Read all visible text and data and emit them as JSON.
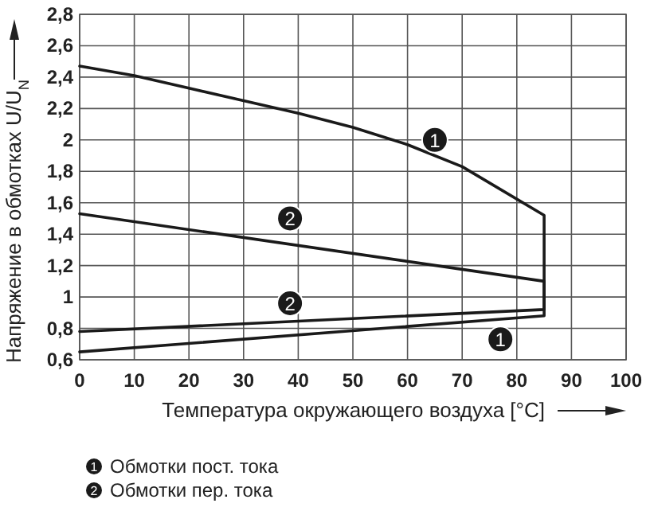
{
  "chart_data": {
    "type": "line",
    "xlabel": "Температура окружающего воздуха [°C]",
    "ylabel": "Напряжение в обмотках  U/U$_{N}$",
    "xlim": [
      0,
      100
    ],
    "xticks": [
      0,
      10,
      20,
      30,
      40,
      50,
      60,
      70,
      80,
      90,
      100
    ],
    "ylim": [
      0.6,
      2.8
    ],
    "yticks": [
      {
        "value": 0.6,
        "label": "0,6"
      },
      {
        "value": 0.8,
        "label": "0,8"
      },
      {
        "value": 1,
        "label": "1"
      },
      {
        "value": 1.2,
        "label": "1,2"
      },
      {
        "value": 1.4,
        "label": "1,4"
      },
      {
        "value": 1.6,
        "label": "1,6"
      },
      {
        "value": 1.8,
        "label": "1,8"
      },
      {
        "value": 2,
        "label": "2"
      },
      {
        "value": 2.2,
        "label": "2,2"
      },
      {
        "value": 2.4,
        "label": "2,4"
      },
      {
        "value": 2.6,
        "label": "2,6"
      },
      {
        "value": 2.8,
        "label": "2,8"
      }
    ],
    "grid": true,
    "legend": "bottom",
    "marker": "none",
    "line_style": "solid",
    "series": [
      {
        "name": "Обмотки пост. тока",
        "color": "#1a1a1a",
        "x": [
          0,
          10,
          20,
          30,
          40,
          50,
          60,
          70,
          85,
          85,
          0
        ],
        "values": [
          2.47,
          2.41,
          2.33,
          2.25,
          2.17,
          2.08,
          1.97,
          1.83,
          1.52,
          0.88,
          0.65
        ]
      },
      {
        "name": "Обмотки пер. тока",
        "color": "#1a1a1a",
        "x": [
          0,
          85,
          85,
          0
        ],
        "values": [
          1.53,
          1.1,
          0.92,
          0.78
        ]
      }
    ],
    "annotations": [
      {
        "text": "1",
        "x": 65,
        "y": 2.0
      },
      {
        "text": "2",
        "x": 38.5,
        "y": 1.5
      },
      {
        "text": "2",
        "x": 38.5,
        "y": 0.96
      },
      {
        "text": "1",
        "x": 77,
        "y": 0.73
      }
    ]
  }
}
